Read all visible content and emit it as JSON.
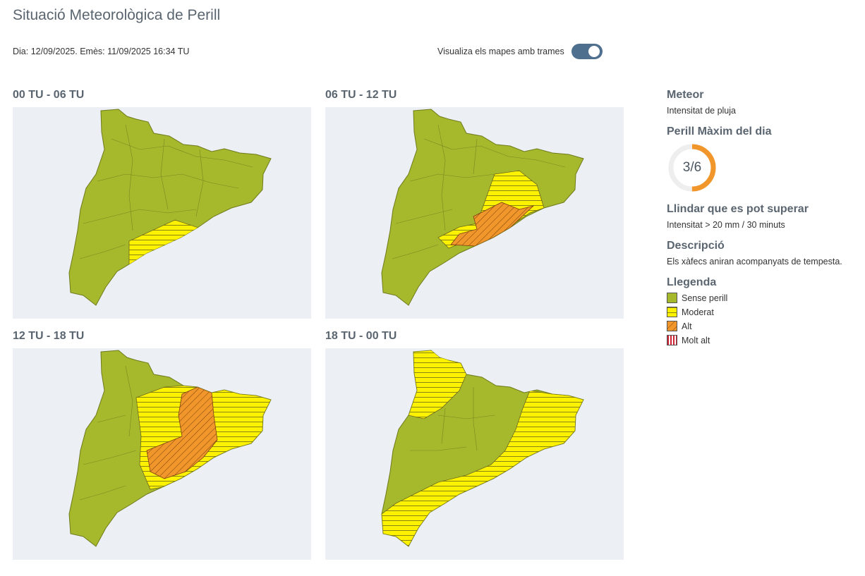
{
  "page": {
    "title": "Situació Meteorològica de Perill",
    "issue_line": "Dia: 12/09/2025. Emès: 11/09/2025 16:34 TU",
    "toggle_label": "Visualiza els mapes amb trames",
    "toggle_on": true
  },
  "maps": [
    {
      "period": "00 TU - 06 TU",
      "levels": [
        "Sense perill",
        "Moderat"
      ]
    },
    {
      "period": "06 TU - 12 TU",
      "levels": [
        "Sense perill",
        "Moderat",
        "Alt"
      ]
    },
    {
      "period": "12 TU - 18 TU",
      "levels": [
        "Sense perill",
        "Moderat",
        "Alt"
      ]
    },
    {
      "period": "18 TU - 00 TU",
      "levels": [
        "Sense perill",
        "Moderat"
      ]
    }
  ],
  "sidebar": {
    "meteor_heading": "Meteor",
    "meteor_value": "Intensitat de pluja",
    "max_heading": "Perill Màxim del dia",
    "max_value_text": "3/6",
    "max_value": 3,
    "max_scale": 6,
    "threshold_heading": "Llindar que es pot superar",
    "threshold_value": "Intensitat > 20 mm / 30 minuts",
    "description_heading": "Descripció",
    "description_value": "Els xàfecs aniran acompanyats de tempesta.",
    "legend_heading": "Llegenda",
    "legend": [
      {
        "label": "Sense perill",
        "color": "#a6b82c"
      },
      {
        "label": "Moderat",
        "color": "#fff200"
      },
      {
        "label": "Alt",
        "color": "#f0962a"
      },
      {
        "label": "Molt alt",
        "color": "#cc2233"
      }
    ]
  },
  "colors": {
    "sense_perill": "#a6b82c",
    "moderat": "#fff200",
    "alt": "#f0962a",
    "molt_alt": "#cc2233",
    "gauge": "#f0962a",
    "toggle": "#4f6f8f",
    "map_background": "#ecf0f4"
  },
  "icons": {
    "toggle": "toggle-switch-icon",
    "gauge": "ring-gauge-icon"
  }
}
